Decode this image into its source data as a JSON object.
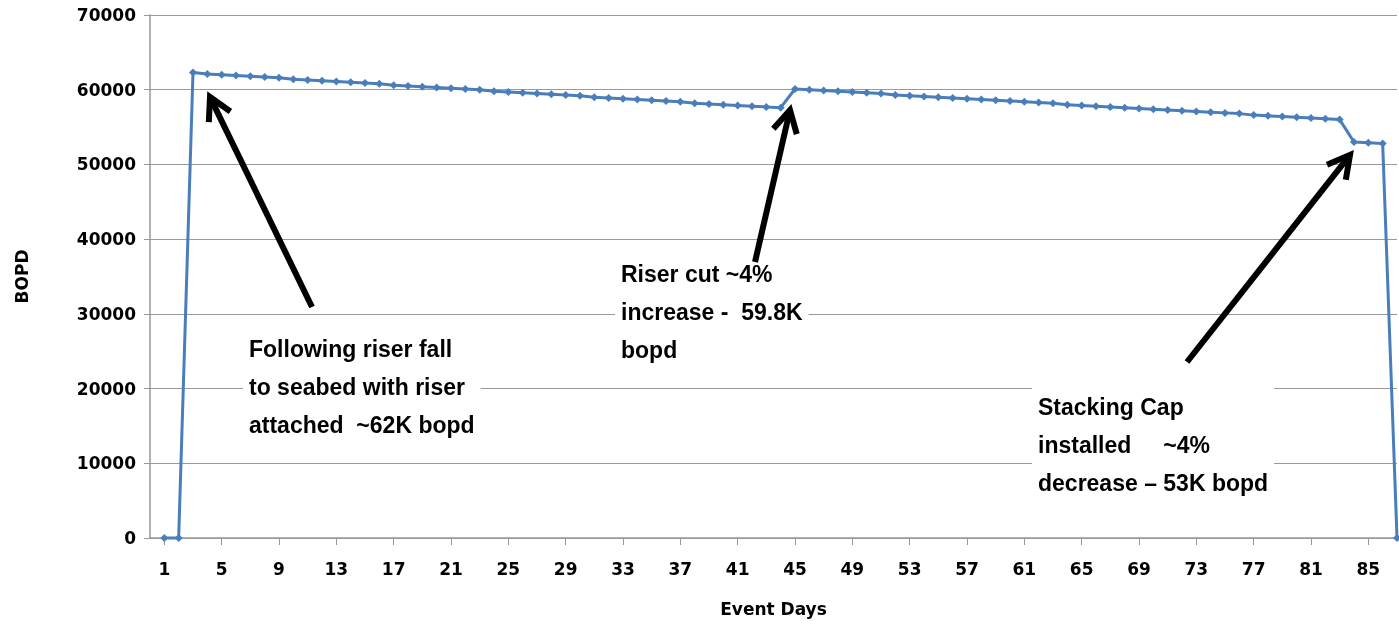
{
  "chart_data": {
    "type": "line",
    "xlabel": "Event Days",
    "ylabel": "BOPD",
    "x": [
      1,
      2,
      3,
      4,
      5,
      6,
      7,
      8,
      9,
      10,
      11,
      12,
      13,
      14,
      15,
      16,
      17,
      18,
      19,
      20,
      21,
      22,
      23,
      24,
      25,
      26,
      27,
      28,
      29,
      30,
      31,
      32,
      33,
      34,
      35,
      36,
      37,
      38,
      39,
      40,
      41,
      42,
      43,
      44,
      45,
      46,
      47,
      48,
      49,
      50,
      51,
      52,
      53,
      54,
      55,
      56,
      57,
      58,
      59,
      60,
      61,
      62,
      63,
      64,
      65,
      66,
      67,
      68,
      69,
      70,
      71,
      72,
      73,
      74,
      75,
      76,
      77,
      78,
      79,
      80,
      81,
      82,
      83,
      84,
      85,
      86,
      87
    ],
    "series": [
      {
        "color": "#4a7ebb",
        "values": [
          0,
          0,
          62300,
          62100,
          62000,
          61900,
          61800,
          61700,
          61600,
          61400,
          61300,
          61200,
          61100,
          61000,
          60900,
          60800,
          60600,
          60500,
          60400,
          60300,
          60200,
          60100,
          60000,
          59800,
          59700,
          59600,
          59500,
          59400,
          59300,
          59200,
          59000,
          58900,
          58800,
          58700,
          58600,
          58500,
          58400,
          58200,
          58100,
          58000,
          57900,
          57800,
          57700,
          57600,
          60100,
          60000,
          59900,
          59800,
          59700,
          59600,
          59500,
          59300,
          59200,
          59100,
          59000,
          58900,
          58800,
          58700,
          58600,
          58500,
          58400,
          58300,
          58200,
          58000,
          57900,
          57800,
          57700,
          57600,
          57500,
          57400,
          57300,
          57200,
          57100,
          57000,
          56900,
          56800,
          56600,
          56500,
          56400,
          56300,
          56200,
          56100,
          56000,
          53000,
          52900,
          52800,
          0
        ]
      }
    ],
    "xlim": [
      0,
      87
    ],
    "xticks": [
      1,
      5,
      9,
      13,
      17,
      21,
      25,
      29,
      33,
      37,
      41,
      45,
      49,
      53,
      57,
      61,
      65,
      69,
      73,
      77,
      81,
      85
    ],
    "ylim": [
      0,
      70000
    ],
    "yticks": [
      0,
      10000,
      20000,
      30000,
      40000,
      50000,
      60000,
      70000
    ],
    "grid": "y",
    "marker": "diamond",
    "line_style": "solid",
    "annotations": [
      "Following riser fall\nto seabed with riser\nattached  ~62K bopd",
      "Riser cut ~4%\nincrease -  59.8K\nbopd",
      "Stacking Cap\ninstalled     ~4%\ndecrease – 53K bopd"
    ]
  }
}
